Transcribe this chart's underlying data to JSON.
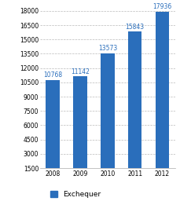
{
  "categories": [
    "2008",
    "2009",
    "2010",
    "2011",
    "2012"
  ],
  "values": [
    10768,
    11142,
    13573,
    15843,
    17936
  ],
  "bar_color": "#2A6EBB",
  "label_color": "#2A6EBB",
  "ylim": [
    1500,
    18500
  ],
  "yticks": [
    1500,
    3000,
    4500,
    6000,
    7500,
    9000,
    10500,
    12000,
    13500,
    15000,
    16500,
    18000
  ],
  "legend_label": "Exchequer",
  "background_color": "#ffffff",
  "grid_color": "#bbbbbb",
  "label_fontsize": 5.5,
  "tick_fontsize": 5.5,
  "legend_fontsize": 6.5,
  "bar_width": 0.5
}
